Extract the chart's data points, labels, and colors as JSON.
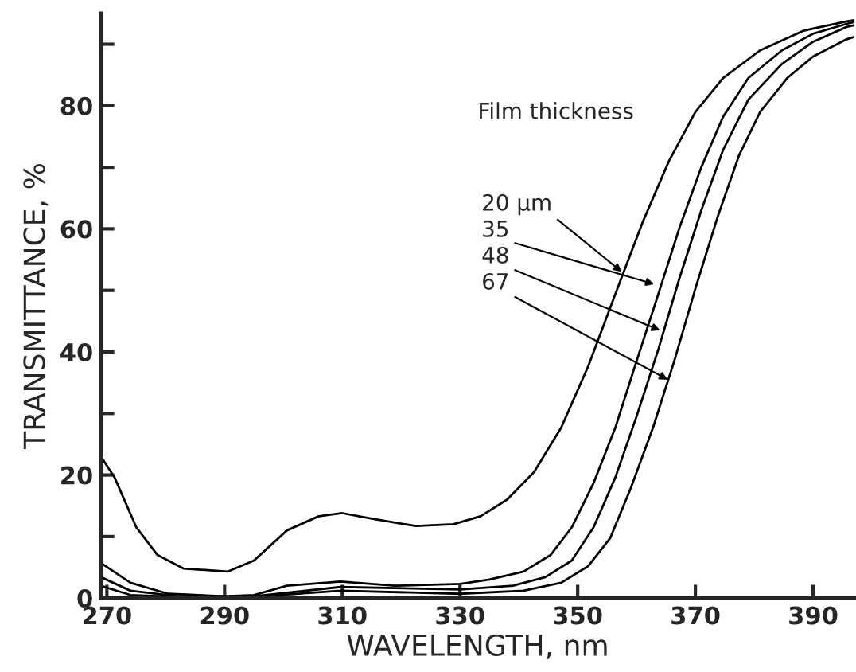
{
  "chart_data": {
    "type": "line",
    "xlabel": "WAVELENGTH, nm",
    "ylabel": "TRANSMITTANCE, %",
    "xlim": [
      269,
      397
    ],
    "ylim": [
      0,
      95
    ],
    "xticks": [
      270,
      290,
      310,
      330,
      350,
      370,
      390
    ],
    "yticks": [
      0,
      {
        "value": 10,
        "label": null
      },
      20,
      {
        "value": 30,
        "label": null
      },
      40,
      {
        "value": 50,
        "label": null
      },
      60,
      {
        "value": 70,
        "label": null
      },
      80,
      {
        "value": 90,
        "label": null
      }
    ],
    "grid": false,
    "marker": "none",
    "line_style": "solid",
    "series": [
      {
        "color": "#000000",
        "x": [
          269,
          271.3,
          275,
          278.6,
          283,
          290.5,
          295,
          300.6,
          306,
          310,
          315,
          322.5,
          328.9,
          333.5,
          338,
          342.6,
          347.2,
          351.8,
          356.4,
          361,
          365.5,
          370,
          374.7,
          381,
          388.4,
          395.7,
          397
        ],
        "values": [
          23,
          19.6,
          11.5,
          7,
          4.8,
          4.3,
          6.1,
          11,
          13.3,
          13.8,
          12.9,
          11.7,
          12,
          13.3,
          16,
          20.5,
          27.7,
          37.7,
          49.4,
          61,
          71,
          79,
          84.5,
          89,
          92.2,
          93.7,
          93.9
        ]
      },
      {
        "color": "#000000",
        "x": [
          269,
          274,
          280.4,
          290,
          295,
          300.6,
          309.7,
          318.9,
          330,
          335,
          340.8,
          345.4,
          349,
          352.7,
          356.4,
          360,
          363.7,
          367.3,
          371,
          374.7,
          379,
          384.7,
          390,
          395.7,
          397
        ],
        "values": [
          5.7,
          2.5,
          0.7,
          0.3,
          0.5,
          2,
          2.7,
          2,
          2.3,
          3,
          4.3,
          7,
          11.5,
          18.7,
          27.7,
          38.5,
          49.4,
          60.2,
          70,
          78.2,
          84.5,
          89,
          91.7,
          93.3,
          93.6
        ]
      },
      {
        "color": "#000000",
        "x": [
          269,
          274,
          282,
          295,
          309.7,
          330,
          339,
          344.5,
          349,
          352.7,
          356.4,
          360,
          363.7,
          367.3,
          371,
          374.7,
          379,
          384.7,
          390,
          395.7,
          397
        ],
        "values": [
          3.4,
          1.2,
          0.3,
          0.3,
          1.8,
          1.4,
          2,
          3.4,
          6.1,
          11.5,
          19.6,
          29.5,
          40.4,
          52,
          63,
          72.8,
          81,
          86.8,
          90.4,
          92.8,
          93.1
        ]
      },
      {
        "color": "#000000",
        "x": [
          269,
          274,
          282,
          295,
          309.7,
          330,
          340.8,
          347.2,
          351.8,
          355.5,
          359,
          362.8,
          366.4,
          370,
          373.8,
          377.4,
          381,
          385.6,
          390,
          395.7,
          397
        ],
        "values": [
          2,
          0.5,
          0.2,
          0.2,
          1.2,
          0.7,
          1.2,
          2.5,
          5.2,
          9.7,
          17.8,
          27.7,
          38.5,
          50.3,
          62,
          71.9,
          79,
          84.5,
          88,
          90.8,
          91.2
        ]
      }
    ],
    "annotations": [
      "Film thickness",
      {
        "text": "20 µm",
        "x": 357.5,
        "y": 53
      },
      {
        "text": "35",
        "x": 363,
        "y": 51
      },
      {
        "text": "48",
        "x": 364,
        "y": 43.5
      },
      {
        "text": "67",
        "x": 365.3,
        "y": 35.5
      }
    ]
  }
}
